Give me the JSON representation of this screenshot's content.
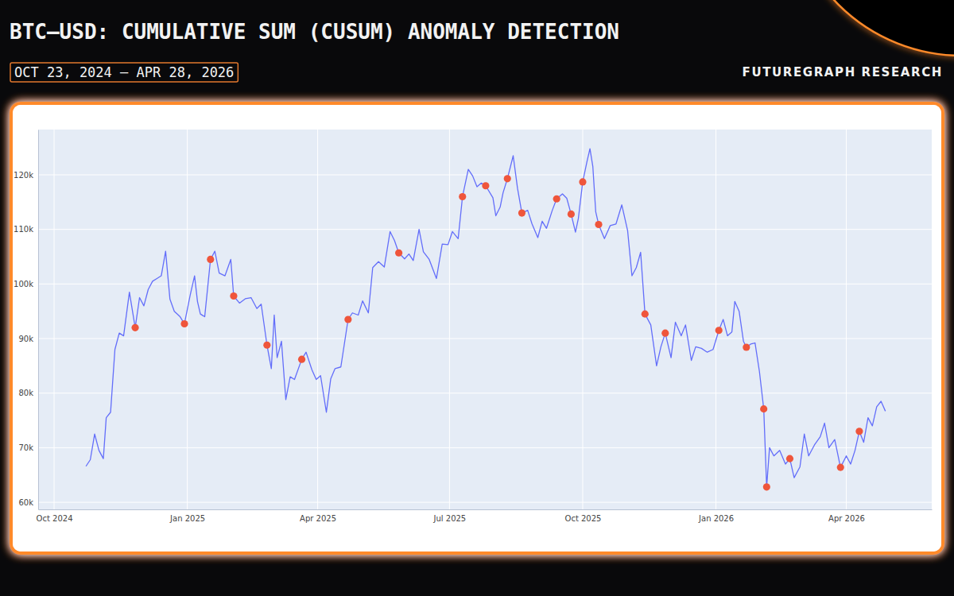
{
  "chart_data": {
    "type": "line",
    "title": "BTC–USD: CUMULATIVE SUM (CUSUM) ANOMALY DETECTION",
    "subtitle": "OCT 23, 2024 – APR 28, 2026",
    "annotations": [
      "FUTUREGRAPH RESEARCH"
    ],
    "grid": true,
    "xlim": [
      "2024-09-20",
      "2026-05-30"
    ],
    "xticks": [
      {
        "value": "2024-10-01",
        "label": "Oct 2024"
      },
      {
        "value": "2025-01-01",
        "label": "Jan 2025"
      },
      {
        "value": "2025-04-01",
        "label": "Apr 2025"
      },
      {
        "value": "2025-07-01",
        "label": "Jul 2025"
      },
      {
        "value": "2025-10-01",
        "label": "Oct 2025"
      },
      {
        "value": "2026-01-01",
        "label": "Jan 2026"
      },
      {
        "value": "2026-04-01",
        "label": "Apr 2026"
      }
    ],
    "ylim": [
      58700,
      128300
    ],
    "yticks": [
      {
        "value": 60000,
        "label": "60k"
      },
      {
        "value": 70000,
        "label": "70k"
      },
      {
        "value": 80000,
        "label": "80k"
      },
      {
        "value": 90000,
        "label": "90k"
      },
      {
        "value": 100000,
        "label": "100k"
      },
      {
        "value": 110000,
        "label": "110k"
      },
      {
        "value": 120000,
        "label": "120k"
      }
    ],
    "x": [
      "2024-10-23",
      "2024-10-26",
      "2024-10-29",
      "2024-11-01",
      "2024-11-04",
      "2024-11-06",
      "2024-11-09",
      "2024-11-12",
      "2024-11-15",
      "2024-11-18",
      "2024-11-22",
      "2024-11-26",
      "2024-11-29",
      "2024-12-02",
      "2024-12-05",
      "2024-12-08",
      "2024-12-11",
      "2024-12-14",
      "2024-12-17",
      "2024-12-20",
      "2024-12-23",
      "2024-12-27",
      "2024-12-30",
      "2025-01-03",
      "2025-01-06",
      "2025-01-08",
      "2025-01-10",
      "2025-01-13",
      "2025-01-17",
      "2025-01-20",
      "2025-01-23",
      "2025-01-27",
      "2025-01-31",
      "2025-02-02",
      "2025-02-06",
      "2025-02-10",
      "2025-02-14",
      "2025-02-18",
      "2025-02-21",
      "2025-02-25",
      "2025-02-28",
      "2025-03-02",
      "2025-03-04",
      "2025-03-07",
      "2025-03-10",
      "2025-03-13",
      "2025-03-16",
      "2025-03-21",
      "2025-03-24",
      "2025-03-28",
      "2025-03-31",
      "2025-04-03",
      "2025-04-07",
      "2025-04-10",
      "2025-04-13",
      "2025-04-17",
      "2025-04-22",
      "2025-04-25",
      "2025-04-29",
      "2025-05-02",
      "2025-05-06",
      "2025-05-09",
      "2025-05-13",
      "2025-05-17",
      "2025-05-21",
      "2025-05-24",
      "2025-05-27",
      "2025-05-31",
      "2025-06-03",
      "2025-06-06",
      "2025-06-10",
      "2025-06-13",
      "2025-06-17",
      "2025-06-22",
      "2025-06-26",
      "2025-06-30",
      "2025-07-03",
      "2025-07-07",
      "2025-07-10",
      "2025-07-14",
      "2025-07-17",
      "2025-07-20",
      "2025-07-23",
      "2025-07-26",
      "2025-07-31",
      "2025-08-02",
      "2025-08-05",
      "2025-08-07",
      "2025-08-10",
      "2025-08-14",
      "2025-08-17",
      "2025-08-20",
      "2025-08-24",
      "2025-08-27",
      "2025-08-31",
      "2025-09-03",
      "2025-09-06",
      "2025-09-10",
      "2025-09-13",
      "2025-09-17",
      "2025-09-20",
      "2025-09-23",
      "2025-09-26",
      "2025-09-28",
      "2025-10-01",
      "2025-10-04",
      "2025-10-06",
      "2025-10-08",
      "2025-10-10",
      "2025-10-12",
      "2025-10-16",
      "2025-10-20",
      "2025-10-24",
      "2025-10-28",
      "2025-11-01",
      "2025-11-04",
      "2025-11-07",
      "2025-11-10",
      "2025-11-13",
      "2025-11-17",
      "2025-11-21",
      "2025-11-24",
      "2025-11-27",
      "2025-12-01",
      "2025-12-04",
      "2025-12-08",
      "2025-12-11",
      "2025-12-15",
      "2025-12-18",
      "2025-12-22",
      "2025-12-26",
      "2025-12-30",
      "2026-01-03",
      "2026-01-06",
      "2026-01-09",
      "2026-01-12",
      "2026-01-14",
      "2026-01-17",
      "2026-01-20",
      "2026-01-22",
      "2026-01-25",
      "2026-01-28",
      "2026-01-31",
      "2026-02-03",
      "2026-02-05",
      "2026-02-07",
      "2026-02-10",
      "2026-02-14",
      "2026-02-18",
      "2026-02-21",
      "2026-02-24",
      "2026-02-28",
      "2026-03-03",
      "2026-03-06",
      "2026-03-10",
      "2026-03-14",
      "2026-03-17",
      "2026-03-20",
      "2026-03-24",
      "2026-03-28",
      "2026-04-01",
      "2026-04-04",
      "2026-04-07",
      "2026-04-10",
      "2026-04-13",
      "2026-04-16",
      "2026-04-19",
      "2026-04-22",
      "2026-04-25",
      "2026-04-28"
    ],
    "series": [
      {
        "type": "line",
        "color": "#636efa",
        "line_style": "solid",
        "values": [
          66600,
          67800,
          72500,
          69500,
          68000,
          75500,
          76500,
          88000,
          91000,
          90500,
          98500,
          92000,
          97500,
          96000,
          99000,
          100500,
          101000,
          101500,
          106000,
          97200,
          95000,
          94000,
          92700,
          98000,
          101500,
          96800,
          94500,
          94000,
          104500,
          106000,
          102000,
          101500,
          104500,
          97800,
          96500,
          97300,
          97500,
          95500,
          96300,
          88800,
          84500,
          94300,
          86500,
          89500,
          78800,
          83000,
          82500,
          86200,
          87500,
          84300,
          82500,
          83200,
          76500,
          82600,
          84500,
          84800,
          93500,
          94700,
          94300,
          96900,
          94700,
          103000,
          104100,
          103100,
          109600,
          108000,
          105700,
          104600,
          105500,
          104300,
          110000,
          105900,
          104500,
          101000,
          107300,
          107200,
          109600,
          108300,
          116000,
          121000,
          119800,
          117800,
          118500,
          118000,
          115800,
          112500,
          114100,
          116700,
          119300,
          123500,
          117500,
          113000,
          113500,
          111000,
          108500,
          111500,
          110200,
          113500,
          115600,
          116500,
          115700,
          112800,
          109500,
          112000,
          118700,
          122500,
          124800,
          121500,
          113200,
          110900,
          108300,
          110700,
          111000,
          114500,
          109800,
          101500,
          103000,
          105800,
          94500,
          92500,
          85000,
          88500,
          91000,
          86500,
          93000,
          90500,
          92500,
          86000,
          88500,
          88200,
          87500,
          88000,
          91500,
          93500,
          90500,
          91200,
          96800,
          95000,
          89500,
          88400,
          89000,
          89200,
          84000,
          77100,
          62800,
          70000,
          68500,
          69500,
          67000,
          68000,
          64500,
          66500,
          72500,
          68500,
          70500,
          72000,
          74500,
          70000,
          71500,
          66400,
          68500,
          67000,
          69500,
          73000,
          71000,
          75500,
          74000,
          77500,
          78500,
          76700
        ]
      },
      {
        "type": "scatter",
        "color": "#ef553b",
        "marker": "circle",
        "x": [
          "2024-11-26",
          "2024-12-30",
          "2025-01-17",
          "2025-02-02",
          "2025-02-25",
          "2025-03-21",
          "2025-04-22",
          "2025-05-27",
          "2025-07-10",
          "2025-07-26",
          "2025-08-10",
          "2025-08-20",
          "2025-09-13",
          "2025-09-23",
          "2025-10-01",
          "2025-10-12",
          "2025-11-13",
          "2025-11-27",
          "2026-01-03",
          "2026-01-22",
          "2026-02-03",
          "2026-02-05",
          "2026-02-21",
          "2026-03-28",
          "2026-04-10"
        ],
        "values": [
          92000,
          92700,
          104500,
          97800,
          88800,
          86200,
          93500,
          105700,
          116000,
          118000,
          119300,
          113000,
          115600,
          112800,
          118700,
          110900,
          94500,
          91000,
          91500,
          88400,
          77100,
          62800,
          68000,
          66400,
          73000
        ]
      }
    ]
  }
}
